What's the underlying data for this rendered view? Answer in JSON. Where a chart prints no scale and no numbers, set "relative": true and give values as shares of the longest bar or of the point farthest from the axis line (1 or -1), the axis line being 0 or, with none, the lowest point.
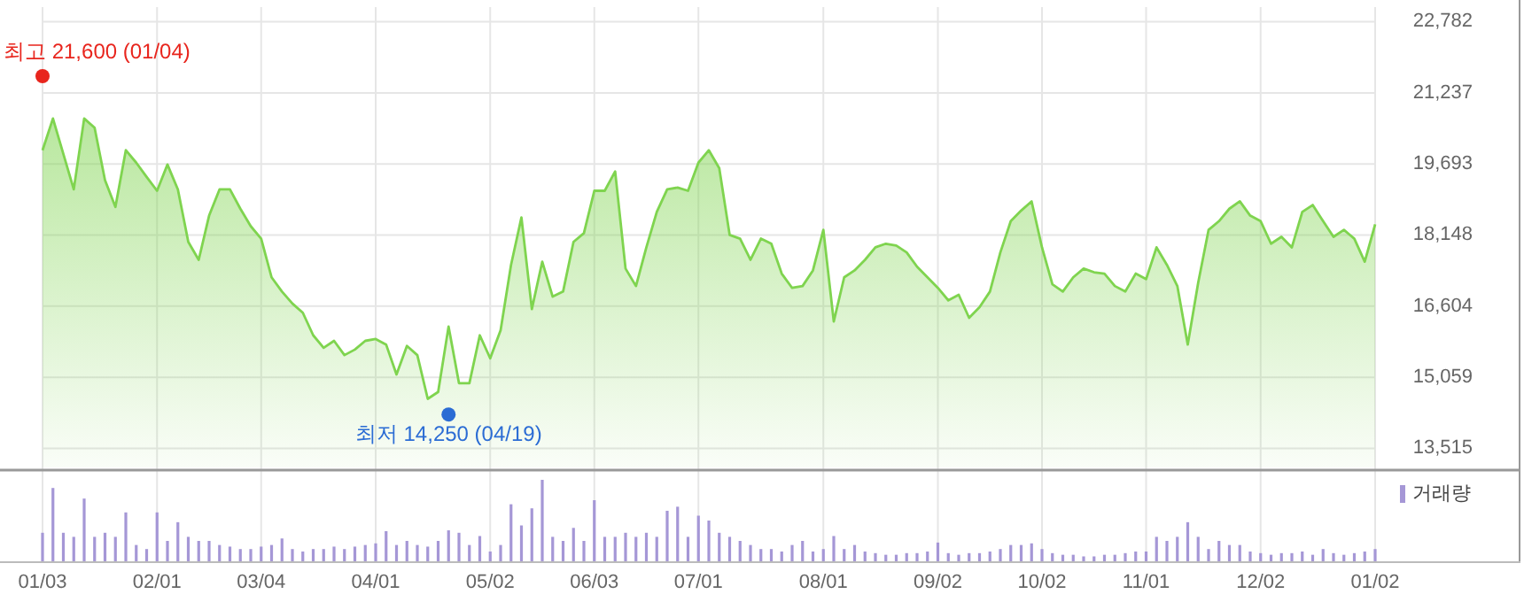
{
  "chart_data": [
    {
      "type": "area",
      "grid": "y",
      "tick_labels": "y",
      "ylim": [
        13100,
        23100
      ],
      "yticks": [
        {
          "value": 13515,
          "label": "13,515"
        },
        {
          "value": 15059,
          "label": "15,059"
        },
        {
          "value": 16604,
          "label": "16,604"
        },
        {
          "value": 18148,
          "label": "18,148"
        },
        {
          "value": 19693,
          "label": "19,693"
        },
        {
          "value": 21237,
          "label": "21,237"
        },
        {
          "value": 22782,
          "label": "22,782"
        }
      ],
      "categories": [
        null,
        null,
        null,
        null,
        null,
        null,
        null,
        null,
        null,
        null,
        null,
        null,
        null,
        null,
        null,
        null,
        null,
        null,
        null,
        null,
        null,
        null,
        null,
        null,
        null,
        null,
        null,
        null,
        null,
        null,
        null,
        null,
        null,
        null,
        null,
        null,
        null,
        null,
        null,
        null,
        null,
        null,
        null,
        null,
        null,
        null,
        null,
        null,
        null,
        null,
        null,
        null,
        null,
        null,
        null,
        null,
        null,
        null,
        null,
        null,
        null,
        null,
        null,
        null,
        null,
        null,
        null,
        null,
        null,
        null,
        null,
        null,
        null,
        null,
        null,
        null,
        null,
        null,
        null,
        null,
        null,
        null,
        null,
        null,
        null,
        null,
        null,
        null,
        null,
        null,
        null,
        null,
        null,
        null,
        null,
        null,
        null,
        null,
        null,
        null,
        null,
        null,
        null,
        null,
        null,
        null,
        null,
        null,
        null,
        null,
        null,
        null,
        null,
        null,
        null,
        null,
        null,
        null,
        null,
        null,
        null,
        null,
        null,
        null,
        null,
        null,
        null,
        null,
        null
      ],
      "series": [
        {
          "color": "#7fd44f",
          "values": [
            19990,
            20680,
            19910,
            19140,
            20680,
            20480,
            19340,
            18760,
            19990,
            19720,
            19410,
            19110,
            19680,
            19140,
            18000,
            17610,
            18570,
            19140,
            19140,
            18720,
            18340,
            18070,
            17230,
            16920,
            16660,
            16460,
            15970,
            15700,
            15850,
            15540,
            15660,
            15850,
            15890,
            15770,
            15120,
            15740,
            15540,
            14590,
            14740,
            16160,
            14930,
            14930,
            15970,
            15470,
            16080,
            17500,
            18530,
            16540,
            17570,
            16810,
            16920,
            18000,
            18190,
            19110,
            19110,
            19530,
            17420,
            17040,
            17880,
            18650,
            19140,
            19180,
            19110,
            19720,
            19990,
            19600,
            18150,
            18070,
            17610,
            18070,
            17960,
            17310,
            17000,
            17040,
            17380,
            18260,
            16270,
            17230,
            17380,
            17610,
            17880,
            17960,
            17920,
            17770,
            17460,
            17230,
            17000,
            16730,
            16850,
            16350,
            16580,
            16920,
            17770,
            18450,
            18680,
            18880,
            17880,
            17080,
            16920,
            17230,
            17420,
            17340,
            17310,
            17040,
            16920,
            17310,
            17190,
            17880,
            17500,
            17040,
            15770,
            17110,
            18260,
            18450,
            18720,
            18880,
            18570,
            18450,
            17960,
            18110,
            17880,
            18650,
            18800,
            18450,
            18110,
            18260,
            18070,
            17570,
            18380
          ]
        },
        {
          "type": "scatter",
          "marker": "circle",
          "color": "#e8251d",
          "values": [
            21600,
            null,
            null,
            null,
            null,
            null,
            null,
            null,
            null,
            null,
            null,
            null,
            null,
            null,
            null,
            null,
            null,
            null,
            null,
            null,
            null,
            null,
            null,
            null,
            null,
            null,
            null,
            null,
            null,
            null,
            null,
            null,
            null,
            null,
            null,
            null,
            null,
            null,
            null,
            null,
            null,
            null,
            null,
            null,
            null,
            null,
            null,
            null,
            null,
            null,
            null,
            null,
            null,
            null,
            null,
            null,
            null,
            null,
            null,
            null,
            null,
            null,
            null,
            null,
            null,
            null,
            null,
            null,
            null,
            null,
            null,
            null,
            null,
            null,
            null,
            null,
            null,
            null,
            null,
            null,
            null,
            null,
            null,
            null,
            null,
            null,
            null,
            null,
            null,
            null,
            null,
            null,
            null,
            null,
            null,
            null,
            null,
            null,
            null,
            null,
            null,
            null,
            null,
            null,
            null,
            null,
            null,
            null,
            null,
            null,
            null,
            null,
            null,
            null,
            null,
            null,
            null,
            null,
            null,
            null,
            null,
            null,
            null,
            null,
            null,
            null,
            null,
            null,
            null
          ],
          "value_labels": [
            "최고 21,600 (01/04)",
            null,
            null,
            null,
            null,
            null,
            null,
            null,
            null,
            null,
            null,
            null,
            null,
            null,
            null,
            null,
            null,
            null,
            null,
            null,
            null,
            null,
            null,
            null,
            null,
            null,
            null,
            null,
            null,
            null,
            null,
            null,
            null,
            null,
            null,
            null,
            null,
            null,
            null,
            null,
            null,
            null,
            null,
            null,
            null,
            null,
            null,
            null,
            null,
            null,
            null,
            null,
            null,
            null,
            null,
            null,
            null,
            null,
            null,
            null,
            null,
            null,
            null,
            null,
            null,
            null,
            null,
            null,
            null,
            null,
            null,
            null,
            null,
            null,
            null,
            null,
            null,
            null,
            null,
            null,
            null,
            null,
            null,
            null,
            null,
            null,
            null,
            null,
            null,
            null,
            null,
            null,
            null,
            null,
            null,
            null,
            null,
            null,
            null,
            null,
            null,
            null,
            null,
            null,
            null,
            null,
            null,
            null,
            null,
            null,
            null,
            null,
            null,
            null,
            null,
            null,
            null,
            null,
            null,
            null,
            null,
            null,
            null,
            null,
            null,
            null,
            null,
            null,
            null
          ]
        },
        {
          "type": "scatter",
          "marker": "circle",
          "color": "#2b6cd4",
          "values": [
            null,
            null,
            null,
            null,
            null,
            null,
            null,
            null,
            null,
            null,
            null,
            null,
            null,
            null,
            null,
            null,
            null,
            null,
            null,
            null,
            null,
            null,
            null,
            null,
            null,
            null,
            null,
            null,
            null,
            null,
            null,
            null,
            null,
            null,
            null,
            null,
            null,
            null,
            null,
            14250,
            null,
            null,
            null,
            null,
            null,
            null,
            null,
            null,
            null,
            null,
            null,
            null,
            null,
            null,
            null,
            null,
            null,
            null,
            null,
            null,
            null,
            null,
            null,
            null,
            null,
            null,
            null,
            null,
            null,
            null,
            null,
            null,
            null,
            null,
            null,
            null,
            null,
            null,
            null,
            null,
            null,
            null,
            null,
            null,
            null,
            null,
            null,
            null,
            null,
            null,
            null,
            null,
            null,
            null,
            null,
            null,
            null,
            null,
            null,
            null,
            null,
            null,
            null,
            null,
            null,
            null,
            null,
            null,
            null,
            null,
            null,
            null,
            null,
            null,
            null,
            null,
            null,
            null,
            null,
            null,
            null,
            null,
            null,
            null,
            null,
            null,
            null,
            null,
            null
          ],
          "value_labels": [
            null,
            null,
            null,
            null,
            null,
            null,
            null,
            null,
            null,
            null,
            null,
            null,
            null,
            null,
            null,
            null,
            null,
            null,
            null,
            null,
            null,
            null,
            null,
            null,
            null,
            null,
            null,
            null,
            null,
            null,
            null,
            null,
            null,
            null,
            null,
            null,
            null,
            null,
            null,
            "최저 14,250 (04/19)",
            null,
            null,
            null,
            null,
            null,
            null,
            null,
            null,
            null,
            null,
            null,
            null,
            null,
            null,
            null,
            null,
            null,
            null,
            null,
            null,
            null,
            null,
            null,
            null,
            null,
            null,
            null,
            null,
            null,
            null,
            null,
            null,
            null,
            null,
            null,
            null,
            null,
            null,
            null,
            null,
            null,
            null,
            null,
            null,
            null,
            null,
            null,
            null,
            null,
            null,
            null,
            null,
            null,
            null,
            null,
            null,
            null,
            null,
            null,
            null,
            null,
            null,
            null,
            null,
            null,
            null,
            null,
            null,
            null,
            null,
            null,
            null,
            null,
            null,
            null,
            null,
            null,
            null,
            null,
            null,
            null,
            null,
            null,
            null,
            null,
            null,
            null,
            null,
            null
          ]
        }
      ]
    },
    {
      "type": "bar",
      "relative": true,
      "tick_labels": "x",
      "legend": "top right",
      "grid": "x",
      "categories": [
        "01/03",
        null,
        null,
        null,
        null,
        null,
        null,
        null,
        null,
        null,
        null,
        "02/01",
        null,
        null,
        null,
        null,
        null,
        null,
        null,
        null,
        null,
        "03/04",
        null,
        null,
        null,
        null,
        null,
        null,
        null,
        null,
        null,
        null,
        "04/01",
        null,
        null,
        null,
        null,
        null,
        null,
        null,
        null,
        null,
        null,
        "05/02",
        null,
        null,
        null,
        null,
        null,
        null,
        null,
        null,
        null,
        "06/03",
        null,
        null,
        null,
        null,
        null,
        null,
        null,
        null,
        null,
        "07/01",
        null,
        null,
        null,
        null,
        null,
        null,
        null,
        null,
        null,
        null,
        null,
        "08/01",
        null,
        null,
        null,
        null,
        null,
        null,
        null,
        null,
        null,
        null,
        "09/02",
        null,
        null,
        null,
        null,
        null,
        null,
        null,
        null,
        null,
        "10/02",
        null,
        null,
        null,
        null,
        null,
        null,
        null,
        null,
        null,
        "11/01",
        null,
        null,
        null,
        null,
        null,
        null,
        null,
        null,
        null,
        null,
        "12/02",
        null,
        null,
        null,
        null,
        null,
        null,
        null,
        null,
        null,
        null,
        "01/02"
      ],
      "series": [
        {
          "name": "거래량",
          "color": "#a597d6",
          "values": [
            0.35,
            0.9,
            0.35,
            0.3,
            0.77,
            0.3,
            0.35,
            0.3,
            0.6,
            0.2,
            0.15,
            0.6,
            0.25,
            0.48,
            0.3,
            0.25,
            0.25,
            0.2,
            0.18,
            0.15,
            0.15,
            0.18,
            0.2,
            0.28,
            0.15,
            0.12,
            0.15,
            0.15,
            0.18,
            0.15,
            0.18,
            0.2,
            0.22,
            0.37,
            0.2,
            0.25,
            0.2,
            0.18,
            0.25,
            0.38,
            0.35,
            0.2,
            0.31,
            0.12,
            0.2,
            0.7,
            0.44,
            0.65,
            1,
            0.3,
            0.25,
            0.41,
            0.25,
            0.75,
            0.3,
            0.3,
            0.35,
            0.3,
            0.35,
            0.3,
            0.62,
            0.67,
            0.3,
            0.56,
            0.5,
            0.35,
            0.3,
            0.25,
            0.2,
            0.15,
            0.15,
            0.12,
            0.2,
            0.25,
            0.12,
            0.15,
            0.31,
            0.15,
            0.2,
            0.12,
            0.1,
            0.08,
            0.08,
            0.1,
            0.1,
            0.12,
            0.23,
            0.1,
            0.08,
            0.1,
            0.1,
            0.12,
            0.15,
            0.2,
            0.2,
            0.22,
            0.15,
            0.1,
            0.08,
            0.08,
            0.06,
            0.06,
            0.08,
            0.08,
            0.1,
            0.12,
            0.12,
            0.3,
            0.25,
            0.3,
            0.48,
            0.3,
            0.15,
            0.25,
            0.2,
            0.2,
            0.12,
            0.1,
            0.08,
            0.1,
            0.1,
            0.12,
            0.08,
            0.15,
            0.1,
            0.08,
            0.1,
            0.12,
            0.15
          ]
        }
      ]
    }
  ]
}
